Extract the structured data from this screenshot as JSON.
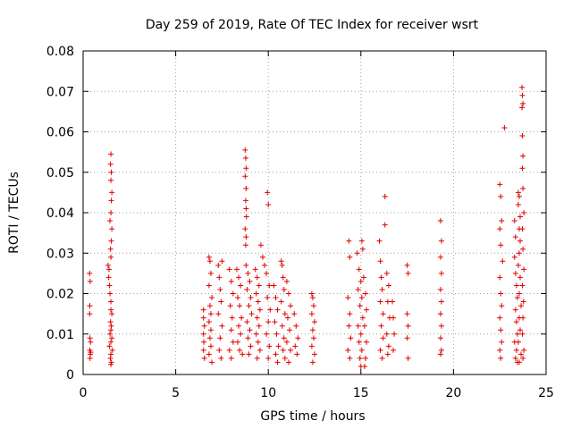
{
  "chart_data": {
    "type": "scatter",
    "title": "Day 259 of 2019, Rate Of TEC Index for receiver wsrt",
    "xlabel": "GPS time / hours",
    "ylabel": "ROTI / TECUs",
    "xlim": [
      0,
      25
    ],
    "ylim": [
      0,
      0.08
    ],
    "xticks": [
      0,
      5,
      10,
      15,
      20,
      25
    ],
    "yticks": [
      0,
      0.01,
      0.02,
      0.03,
      0.04,
      0.05,
      0.06,
      0.07,
      0.08
    ],
    "xtick_labels": [
      "0",
      "5",
      "10",
      "15",
      "20",
      "25"
    ],
    "ytick_labels": [
      "0",
      "0.01",
      "0.02",
      "0.03",
      "0.04",
      "0.05",
      "0.06",
      "0.07",
      "0.08"
    ],
    "grid": true,
    "marker": "+",
    "color": "#e00000",
    "series": [
      {
        "name": "ROTI",
        "points": [
          [
            0.35,
            0.025
          ],
          [
            0.38,
            0.023
          ],
          [
            0.36,
            0.017
          ],
          [
            0.35,
            0.015
          ],
          [
            0.37,
            0.009
          ],
          [
            0.4,
            0.008
          ],
          [
            0.36,
            0.006
          ],
          [
            0.39,
            0.005
          ],
          [
            0.37,
            0.004
          ],
          [
            0.41,
            0.0055
          ],
          [
            1.35,
            0.027
          ],
          [
            1.4,
            0.026
          ],
          [
            1.38,
            0.024
          ],
          [
            1.42,
            0.022
          ],
          [
            1.45,
            0.02
          ],
          [
            1.5,
            0.018
          ],
          [
            1.5,
            0.016
          ],
          [
            1.55,
            0.015
          ],
          [
            1.48,
            0.013
          ],
          [
            1.52,
            0.012
          ],
          [
            1.5,
            0.011
          ],
          [
            1.45,
            0.01
          ],
          [
            1.55,
            0.009
          ],
          [
            1.5,
            0.008
          ],
          [
            1.42,
            0.007
          ],
          [
            1.58,
            0.006
          ],
          [
            1.5,
            0.005
          ],
          [
            1.47,
            0.004
          ],
          [
            1.53,
            0.003
          ],
          [
            1.5,
            0.0025
          ],
          [
            1.5,
            0.0545
          ],
          [
            1.48,
            0.052
          ],
          [
            1.52,
            0.05
          ],
          [
            1.5,
            0.048
          ],
          [
            1.55,
            0.045
          ],
          [
            1.52,
            0.043
          ],
          [
            1.5,
            0.04
          ],
          [
            1.45,
            0.038
          ],
          [
            1.55,
            0.036
          ],
          [
            1.52,
            0.033
          ],
          [
            1.48,
            0.031
          ],
          [
            1.5,
            0.029
          ],
          [
            6.5,
            0.016
          ],
          [
            6.5,
            0.014
          ],
          [
            6.55,
            0.012
          ],
          [
            6.5,
            0.01
          ],
          [
            6.52,
            0.008
          ],
          [
            6.5,
            0.006
          ],
          [
            6.55,
            0.004
          ],
          [
            6.8,
            0.029
          ],
          [
            6.85,
            0.028
          ],
          [
            6.9,
            0.025
          ],
          [
            6.8,
            0.022
          ],
          [
            6.95,
            0.019
          ],
          [
            6.85,
            0.017
          ],
          [
            6.9,
            0.015
          ],
          [
            6.8,
            0.013
          ],
          [
            6.9,
            0.011
          ],
          [
            6.85,
            0.009
          ],
          [
            6.9,
            0.007
          ],
          [
            6.8,
            0.005
          ],
          [
            6.95,
            0.003
          ],
          [
            7.3,
            0.027
          ],
          [
            7.35,
            0.024
          ],
          [
            7.4,
            0.021
          ],
          [
            7.45,
            0.018
          ],
          [
            7.3,
            0.015
          ],
          [
            7.5,
            0.012
          ],
          [
            7.4,
            0.009
          ],
          [
            7.35,
            0.006
          ],
          [
            7.45,
            0.004
          ],
          [
            7.5,
            0.028
          ],
          [
            7.9,
            0.026
          ],
          [
            8.0,
            0.023
          ],
          [
            8.1,
            0.02
          ],
          [
            7.95,
            0.017
          ],
          [
            8.05,
            0.014
          ],
          [
            8.0,
            0.011
          ],
          [
            8.1,
            0.008
          ],
          [
            7.9,
            0.006
          ],
          [
            8.0,
            0.004
          ],
          [
            8.3,
            0.026
          ],
          [
            8.4,
            0.024
          ],
          [
            8.5,
            0.022
          ],
          [
            8.35,
            0.019
          ],
          [
            8.45,
            0.017
          ],
          [
            8.55,
            0.014
          ],
          [
            8.4,
            0.012
          ],
          [
            8.5,
            0.01
          ],
          [
            8.35,
            0.008
          ],
          [
            8.45,
            0.006
          ],
          [
            8.6,
            0.005
          ],
          [
            8.75,
            0.0555
          ],
          [
            8.78,
            0.0535
          ],
          [
            8.8,
            0.051
          ],
          [
            8.75,
            0.049
          ],
          [
            8.8,
            0.046
          ],
          [
            8.78,
            0.043
          ],
          [
            8.8,
            0.041
          ],
          [
            8.82,
            0.039
          ],
          [
            8.75,
            0.036
          ],
          [
            8.8,
            0.034
          ],
          [
            8.78,
            0.032
          ],
          [
            8.8,
            0.027
          ],
          [
            8.9,
            0.025
          ],
          [
            9.0,
            0.023
          ],
          [
            8.85,
            0.021
          ],
          [
            9.05,
            0.019
          ],
          [
            8.95,
            0.017
          ],
          [
            9.1,
            0.015
          ],
          [
            8.85,
            0.013
          ],
          [
            9.0,
            0.011
          ],
          [
            8.9,
            0.009
          ],
          [
            9.05,
            0.007
          ],
          [
            8.95,
            0.005
          ],
          [
            9.3,
            0.026
          ],
          [
            9.4,
            0.024
          ],
          [
            9.5,
            0.022
          ],
          [
            9.35,
            0.02
          ],
          [
            9.45,
            0.018
          ],
          [
            9.55,
            0.016
          ],
          [
            9.4,
            0.014
          ],
          [
            9.5,
            0.012
          ],
          [
            9.35,
            0.01
          ],
          [
            9.45,
            0.008
          ],
          [
            9.55,
            0.006
          ],
          [
            9.4,
            0.004
          ],
          [
            9.6,
            0.032
          ],
          [
            9.7,
            0.029
          ],
          [
            9.8,
            0.027
          ],
          [
            9.95,
            0.045
          ],
          [
            10.0,
            0.042
          ],
          [
            9.9,
            0.025
          ],
          [
            10.05,
            0.022
          ],
          [
            9.95,
            0.019
          ],
          [
            10.1,
            0.016
          ],
          [
            10.0,
            0.013
          ],
          [
            9.9,
            0.01
          ],
          [
            10.05,
            0.007
          ],
          [
            10.0,
            0.004
          ],
          [
            10.3,
            0.022
          ],
          [
            10.4,
            0.019
          ],
          [
            10.5,
            0.016
          ],
          [
            10.35,
            0.013
          ],
          [
            10.45,
            0.01
          ],
          [
            10.55,
            0.007
          ],
          [
            10.4,
            0.005
          ],
          [
            10.5,
            0.003
          ],
          [
            10.7,
            0.028
          ],
          [
            10.75,
            0.027
          ],
          [
            10.8,
            0.024
          ],
          [
            10.85,
            0.021
          ],
          [
            10.7,
            0.018
          ],
          [
            10.9,
            0.015
          ],
          [
            10.75,
            0.012
          ],
          [
            10.85,
            0.009
          ],
          [
            10.8,
            0.006
          ],
          [
            10.9,
            0.004
          ],
          [
            11.0,
            0.023
          ],
          [
            11.1,
            0.02
          ],
          [
            11.2,
            0.017
          ],
          [
            11.05,
            0.014
          ],
          [
            11.15,
            0.011
          ],
          [
            11.0,
            0.008
          ],
          [
            11.2,
            0.006
          ],
          [
            11.1,
            0.003
          ],
          [
            11.4,
            0.015
          ],
          [
            11.5,
            0.012
          ],
          [
            11.6,
            0.009
          ],
          [
            11.45,
            0.007
          ],
          [
            11.55,
            0.005
          ],
          [
            12.35,
            0.02
          ],
          [
            12.4,
            0.019
          ],
          [
            12.45,
            0.017
          ],
          [
            12.35,
            0.015
          ],
          [
            12.5,
            0.013
          ],
          [
            12.4,
            0.011
          ],
          [
            12.45,
            0.009
          ],
          [
            12.35,
            0.007
          ],
          [
            12.5,
            0.005
          ],
          [
            12.4,
            0.003
          ],
          [
            14.35,
            0.033
          ],
          [
            14.4,
            0.029
          ],
          [
            14.3,
            0.019
          ],
          [
            14.4,
            0.015
          ],
          [
            14.35,
            0.012
          ],
          [
            14.45,
            0.009
          ],
          [
            14.3,
            0.006
          ],
          [
            14.4,
            0.004
          ],
          [
            14.8,
            0.03
          ],
          [
            14.9,
            0.026
          ],
          [
            15.0,
            0.023
          ],
          [
            14.85,
            0.021
          ],
          [
            15.05,
            0.019
          ],
          [
            14.95,
            0.017
          ],
          [
            15.1,
            0.014
          ],
          [
            14.85,
            0.012
          ],
          [
            15.0,
            0.01
          ],
          [
            14.9,
            0.008
          ],
          [
            15.05,
            0.006
          ],
          [
            14.95,
            0.004
          ],
          [
            15.0,
            0.002
          ],
          [
            15.05,
            0.033
          ],
          [
            15.1,
            0.031
          ],
          [
            15.15,
            0.024
          ],
          [
            15.25,
            0.02
          ],
          [
            15.3,
            0.016
          ],
          [
            15.2,
            0.012
          ],
          [
            15.3,
            0.008
          ],
          [
            15.25,
            0.004
          ],
          [
            15.2,
            0.002
          ],
          [
            16.0,
            0.033
          ],
          [
            16.05,
            0.028
          ],
          [
            16.1,
            0.024
          ],
          [
            16.15,
            0.021
          ],
          [
            16.05,
            0.018
          ],
          [
            16.2,
            0.015
          ],
          [
            16.1,
            0.012
          ],
          [
            16.2,
            0.009
          ],
          [
            16.05,
            0.006
          ],
          [
            16.15,
            0.004
          ],
          [
            16.3,
            0.044
          ],
          [
            16.3,
            0.037
          ],
          [
            16.4,
            0.025
          ],
          [
            16.5,
            0.022
          ],
          [
            16.45,
            0.018
          ],
          [
            16.55,
            0.014
          ],
          [
            16.4,
            0.01
          ],
          [
            16.5,
            0.007
          ],
          [
            16.45,
            0.005
          ],
          [
            16.7,
            0.018
          ],
          [
            16.75,
            0.014
          ],
          [
            16.8,
            0.01
          ],
          [
            16.75,
            0.006
          ],
          [
            17.5,
            0.027
          ],
          [
            17.55,
            0.025
          ],
          [
            17.5,
            0.015
          ],
          [
            17.55,
            0.012
          ],
          [
            17.5,
            0.009
          ],
          [
            17.55,
            0.004
          ],
          [
            19.3,
            0.038
          ],
          [
            19.35,
            0.033
          ],
          [
            19.3,
            0.029
          ],
          [
            19.35,
            0.025
          ],
          [
            19.3,
            0.021
          ],
          [
            19.35,
            0.018
          ],
          [
            19.3,
            0.015
          ],
          [
            19.35,
            0.012
          ],
          [
            19.3,
            0.009
          ],
          [
            19.35,
            0.006
          ],
          [
            19.3,
            0.005
          ],
          [
            22.5,
            0.047
          ],
          [
            22.55,
            0.044
          ],
          [
            22.6,
            0.038
          ],
          [
            22.5,
            0.036
          ],
          [
            22.55,
            0.032
          ],
          [
            22.65,
            0.028
          ],
          [
            22.5,
            0.024
          ],
          [
            22.55,
            0.02
          ],
          [
            22.6,
            0.017
          ],
          [
            22.5,
            0.014
          ],
          [
            22.55,
            0.011
          ],
          [
            22.6,
            0.008
          ],
          [
            22.5,
            0.006
          ],
          [
            22.55,
            0.004
          ],
          [
            22.75,
            0.061
          ],
          [
            23.3,
            0.038
          ],
          [
            23.35,
            0.034
          ],
          [
            23.3,
            0.029
          ],
          [
            23.35,
            0.025
          ],
          [
            23.4,
            0.022
          ],
          [
            23.45,
            0.019
          ],
          [
            23.35,
            0.016
          ],
          [
            23.4,
            0.013
          ],
          [
            23.45,
            0.01
          ],
          [
            23.3,
            0.008
          ],
          [
            23.4,
            0.006
          ],
          [
            23.35,
            0.004
          ],
          [
            23.45,
            0.003
          ],
          [
            23.5,
            0.045
          ],
          [
            23.55,
            0.044
          ],
          [
            23.5,
            0.042
          ],
          [
            23.6,
            0.039
          ],
          [
            23.55,
            0.036
          ],
          [
            23.6,
            0.033
          ],
          [
            23.55,
            0.03
          ],
          [
            23.5,
            0.027
          ],
          [
            23.6,
            0.024
          ],
          [
            23.55,
            0.02
          ],
          [
            23.65,
            0.017
          ],
          [
            23.55,
            0.014
          ],
          [
            23.6,
            0.011
          ],
          [
            23.5,
            0.008
          ],
          [
            23.65,
            0.005
          ],
          [
            23.55,
            0.003
          ],
          [
            23.7,
            0.071
          ],
          [
            23.72,
            0.069
          ],
          [
            23.75,
            0.067
          ],
          [
            23.7,
            0.066
          ],
          [
            23.72,
            0.059
          ],
          [
            23.75,
            0.054
          ],
          [
            23.72,
            0.051
          ],
          [
            23.75,
            0.046
          ],
          [
            23.8,
            0.04
          ],
          [
            23.72,
            0.036
          ],
          [
            23.75,
            0.031
          ],
          [
            23.8,
            0.026
          ],
          [
            23.72,
            0.022
          ],
          [
            23.78,
            0.018
          ],
          [
            23.75,
            0.014
          ],
          [
            23.72,
            0.01
          ],
          [
            23.8,
            0.006
          ],
          [
            23.75,
            0.004
          ]
        ]
      }
    ]
  }
}
